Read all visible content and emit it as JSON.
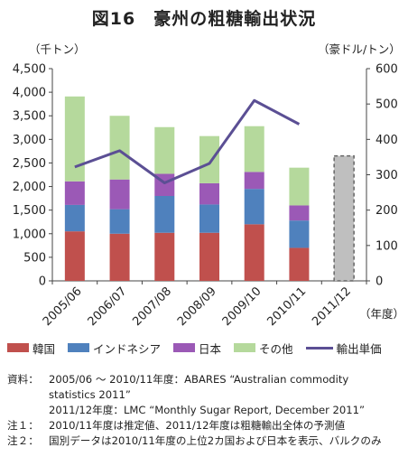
{
  "title": "図16　豪州の粗糖輸出状況",
  "left_unit": "（千トン）",
  "right_unit": "（豪ドル/トン）",
  "x_unit": "（年度）",
  "colors": {
    "韓国": "#c0504d",
    "インドネシア": "#4f81bd",
    "日本": "#9b59b6",
    "その他": "#b5d99c",
    "輸出単価": "#5b4f94",
    "forecast_fill": "#bfbfbf",
    "forecast_border": "#666666"
  },
  "legend": [
    {
      "label": "韓国",
      "type": "bar"
    },
    {
      "label": "インドネシア",
      "type": "bar"
    },
    {
      "label": "日本",
      "type": "bar"
    },
    {
      "label": "その他",
      "type": "bar"
    },
    {
      "label": "輸出単価",
      "type": "line"
    }
  ],
  "notes": [
    {
      "label": "資料：",
      "lines": [
        "2005/06 ～ 2010/11年度：ABARES “Australian commodity",
        "statistics 2011”",
        "2011/12年度：LMC “Monthly Sugar Report, December 2011”"
      ]
    },
    {
      "label": "注１：",
      "lines": [
        "2010/11年度は推定値、2011/12年度は粗糖輸出全体の予測値"
      ]
    },
    {
      "label": "注２：",
      "lines": [
        "国別データは2010/11年度の上位2カ国および日本を表示、バルクのみ"
      ]
    }
  ],
  "chart_data": {
    "type": "bar",
    "stacked": true,
    "categories": [
      "2005/06",
      "2006/07",
      "2007/08",
      "2008/09",
      "2009/10",
      "2010/11",
      "2011/12"
    ],
    "series": [
      {
        "name": "韓国",
        "values": [
          1050,
          1000,
          1020,
          1020,
          1200,
          700,
          null
        ]
      },
      {
        "name": "インドネシア",
        "values": [
          560,
          520,
          780,
          600,
          750,
          580,
          null
        ]
      },
      {
        "name": "日本",
        "values": [
          500,
          630,
          470,
          450,
          360,
          320,
          null
        ]
      },
      {
        "name": "その他",
        "values": [
          1800,
          1350,
          990,
          1000,
          970,
          800,
          null
        ]
      }
    ],
    "forecast_total": {
      "category": "2011/12",
      "value": 2650
    },
    "line_series": {
      "name": "輸出単価",
      "axis": "right",
      "values": [
        322,
        368,
        277,
        332,
        510,
        443,
        null
      ]
    },
    "y_left": {
      "min": 0,
      "max": 4500,
      "ticks": [
        "0",
        "500",
        "1,000",
        "1,500",
        "2,000",
        "2,500",
        "3,000",
        "3,500",
        "4,000",
        "4,500"
      ]
    },
    "y_right": {
      "min": 0,
      "max": 600,
      "ticks": [
        "0",
        "100",
        "200",
        "300",
        "400",
        "500",
        "600"
      ]
    },
    "grid": false
  }
}
